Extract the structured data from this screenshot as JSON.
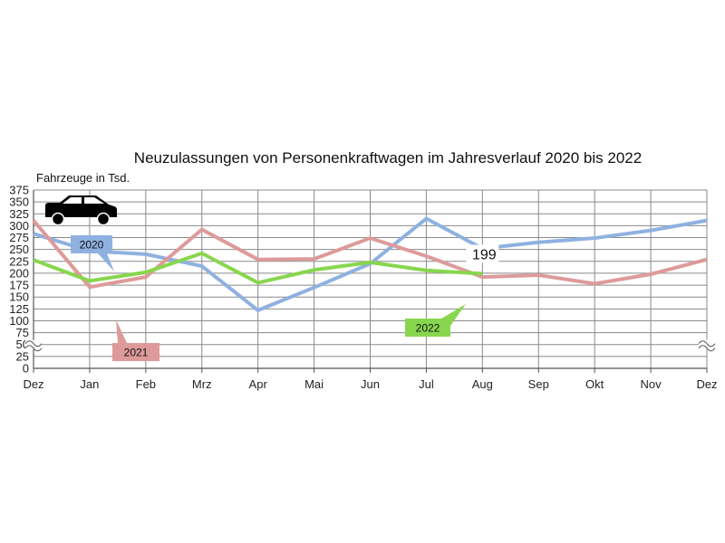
{
  "chart_data": {
    "type": "line",
    "title": "Neuzulassungen von Personenkraftwagen im Jahresverlauf 2020 bis 2022",
    "ylabel": "Fahrzeuge in Tsd.",
    "xlabel": "",
    "ylim": [
      0,
      375
    ],
    "y_axis_break": true,
    "grid": true,
    "yticks": [
      "375",
      "350",
      "325",
      "300",
      "275",
      "250",
      "225",
      "200",
      "175",
      "150",
      "125",
      "100",
      "75",
      "50",
      "25",
      "0"
    ],
    "categories": [
      "Dez",
      "Jan",
      "Feb",
      "Mrz",
      "Apr",
      "Mai",
      "Jun",
      "Jul",
      "Aug",
      "Sep",
      "Okt",
      "Nov",
      "Dez"
    ],
    "series": [
      {
        "name": "2020",
        "color": "#8fb1e0",
        "values": [
          283,
          247,
          240,
          215,
          122,
          170,
          220,
          315,
          252,
          265,
          274,
          290,
          311
        ]
      },
      {
        "name": "2021",
        "color": "#de9a9a",
        "values": [
          311,
          171,
          192,
          292,
          229,
          230,
          274,
          236,
          192,
          196,
          178,
          198,
          229
        ]
      },
      {
        "name": "2022",
        "color": "#88d64e",
        "values": [
          228,
          184,
          202,
          242,
          180,
          207,
          223,
          206,
          199,
          null,
          null,
          null,
          null
        ]
      }
    ],
    "annotations": [
      {
        "text": "199",
        "series": "2022",
        "category": "Aug"
      }
    ],
    "icon": "car-icon"
  }
}
